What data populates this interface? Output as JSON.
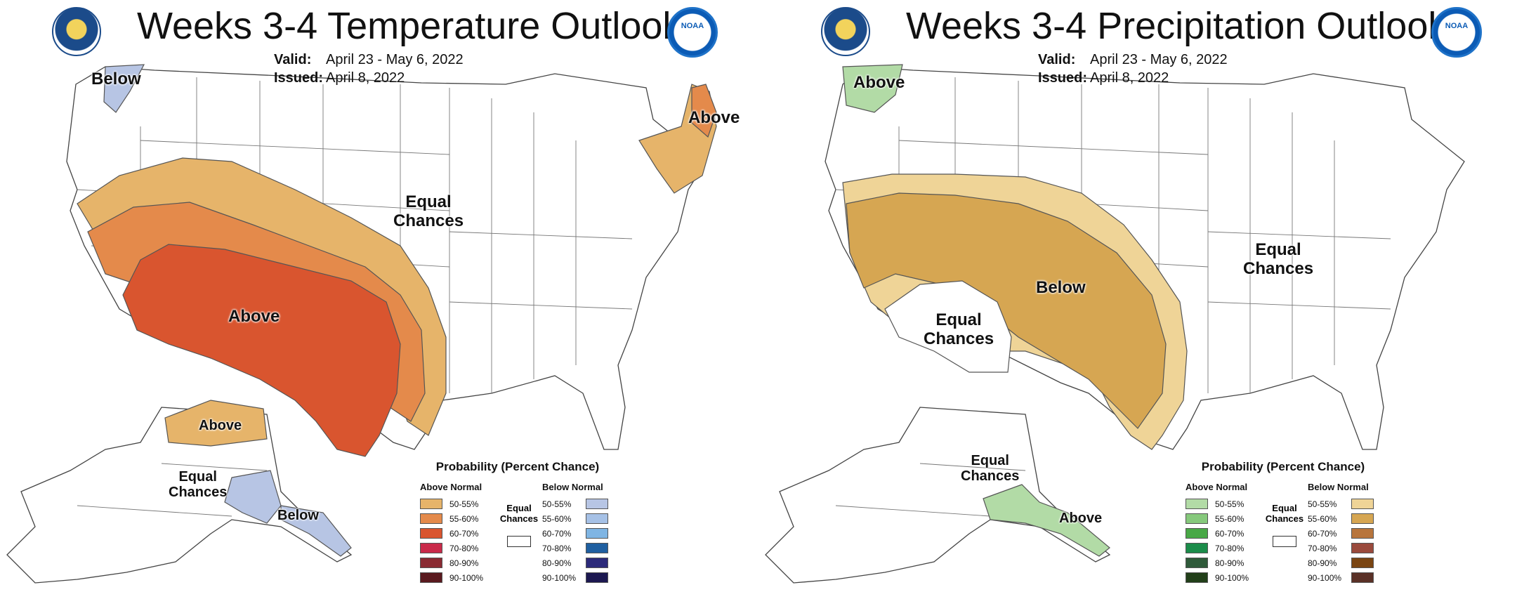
{
  "temperature": {
    "title": "Weeks 3-4 Temperature Outlook",
    "valid_label": "Valid:",
    "valid": "April 23 - May 6, 2022",
    "issued_label": "Issued:",
    "issued": "April 8, 2022",
    "labels": {
      "pacific_nw": "Below",
      "northeast": "Above",
      "central": "Equal\nChances",
      "southwest": "Above",
      "alaska_north": "Above",
      "alaska_west": "Equal\nChances",
      "alaska_south": "Below"
    },
    "colors": {
      "above_50": "#e6b46a",
      "above_55": "#e48a4b",
      "above_60": "#d9552f",
      "below_50": "#b7c5e4"
    }
  },
  "precipitation": {
    "title": "Weeks 3-4 Precipitation Outlook",
    "valid_label": "Valid:",
    "valid": "April 23 - May 6, 2022",
    "issued_label": "Issued:",
    "issued": "April 8, 2022",
    "labels": {
      "pacific_nw": "Above",
      "central": "Below",
      "southwest": "Equal\nChances",
      "east": "Equal\nChances",
      "alaska_north": "Equal\nChances",
      "alaska_south": "Above"
    },
    "colors": {
      "below_50": "#efd497",
      "below_55": "#d6a652",
      "above_50": "#b2dba6"
    }
  },
  "legend_temp": {
    "title": "Probability (Percent Chance)",
    "left_header": "Above Normal",
    "right_header": "Below Normal",
    "equal_label": "Equal\nChances",
    "rows": [
      "50-55%",
      "55-60%",
      "60-70%",
      "70-80%",
      "80-90%",
      "90-100%"
    ],
    "left_colors": [
      "#e6b46a",
      "#e48a4b",
      "#d9552f",
      "#c92a4a",
      "#8a2a32",
      "#5a1a1f"
    ],
    "right_colors": [
      "#b7c5e4",
      "#a6c1e6",
      "#7fb5e3",
      "#1f5fa0",
      "#2c2a7a",
      "#1c1850"
    ]
  },
  "legend_precip": {
    "title": "Probability (Percent Chance)",
    "left_header": "Above Normal",
    "right_header": "Below Normal",
    "equal_label": "Equal\nChances",
    "rows": [
      "50-55%",
      "55-60%",
      "60-70%",
      "70-80%",
      "80-90%",
      "90-100%"
    ],
    "left_colors": [
      "#b2dba6",
      "#86c97c",
      "#48a846",
      "#1b8c4a",
      "#2f5a3a",
      "#223f19"
    ],
    "right_colors": [
      "#efd497",
      "#d6a652",
      "#b8753c",
      "#9a4a3c",
      "#7a4512",
      "#5a3127"
    ]
  },
  "logos": {
    "commerce": "commerce-seal",
    "noaa": "NOAA"
  }
}
